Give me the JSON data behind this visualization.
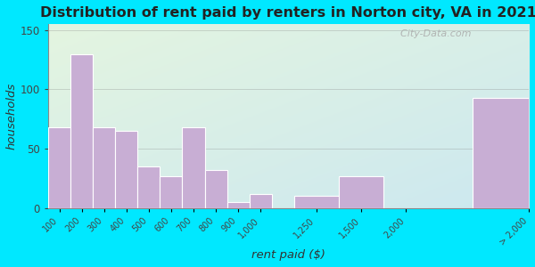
{
  "title": "Distribution of rent paid by renters in Norton city, VA in 2021",
  "xlabel": "rent paid ($)",
  "ylabel": "households",
  "bar_labels": [
    "100",
    "200",
    "300",
    "400",
    "500",
    "600",
    "700",
    "800",
    "900",
    "1,000",
    "1,250",
    "1,500",
    "2,000",
    "> 2,000"
  ],
  "bar_values": [
    68,
    130,
    68,
    65,
    35,
    27,
    68,
    32,
    5,
    12,
    10,
    27,
    0,
    93
  ],
  "bar_color": "#c8aed4",
  "ylim": [
    0,
    155
  ],
  "yticks": [
    0,
    50,
    100,
    150
  ],
  "background_outer": "#00e8ff",
  "background_inner_topleft": "#e4f5e0",
  "background_inner_bottomright": "#cce8f0",
  "title_fontsize": 11.5,
  "axis_label_fontsize": 9.5,
  "watermark": "  City-Data.com",
  "title_color": "#222222"
}
